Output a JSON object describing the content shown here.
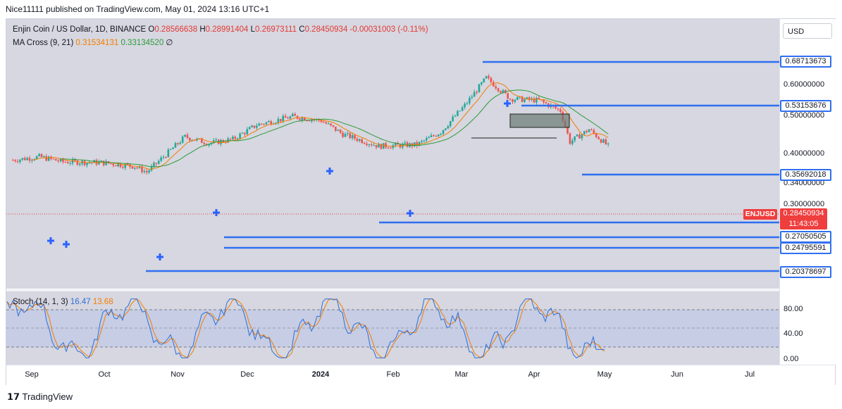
{
  "header": {
    "publisher_line": "Nice11111 published on TradingView.com, May 01, 2024 13:16 UTC+1"
  },
  "toolbar": {
    "currency_button": "USD"
  },
  "legend": {
    "symbol": "Enjin Coin / US Dollar, 1D, BINANCE",
    "open_label": "O",
    "open": "0.28566638",
    "high_label": "H",
    "high": "0.28991404",
    "low_label": "L",
    "low": "0.26973111",
    "close_label": "C",
    "close": "0.28450934",
    "change": "-0.00031003 (-0.11%)",
    "ma_name": "MA Cross (9, 21)",
    "ma_fast": "0.31534131",
    "ma_slow": "0.33134520",
    "ma_suffix": "∅",
    "stoch_name": "Stoch (14, 1, 3)",
    "stoch_k": "16.47",
    "stoch_d": "13.68"
  },
  "current_price": {
    "symbol": "ENJUSD",
    "price": "0.28450934",
    "countdown": "11:43:05"
  },
  "footer": {
    "brand": "TradingView",
    "logo": "tradingview-logo-icon"
  },
  "colors": {
    "level": "#2f6ff0",
    "ma_fast": "#f57c00",
    "ma_slow": "#2e9a3c",
    "up": "#26a69a",
    "down": "#ef5350",
    "stoch_k": "#2f6fd8",
    "stoch_d": "#f57c00",
    "cross_marker": "#2962ff",
    "current": "#ef3e3e"
  },
  "chart_data": {
    "type": "candlestick",
    "title": "Enjin Coin / US Dollar, 1D, BINANCE",
    "y_scale": "log",
    "y_tick_labels": [
      "0.60000000",
      "0.50000000",
      "0.40000000",
      "0.34000000",
      "0.30000000"
    ],
    "x_tick_labels": [
      "Sep",
      "Oct",
      "Nov",
      "Dec",
      "2024",
      "Feb",
      "Mar",
      "Apr",
      "May",
      "Jun",
      "Jul"
    ],
    "approx_close_path": [
      {
        "date": "2023-08-25",
        "close": 0.24
      },
      {
        "date": "2023-09-05",
        "close": 0.25
      },
      {
        "date": "2023-09-15",
        "close": 0.235
      },
      {
        "date": "2023-10-01",
        "close": 0.233
      },
      {
        "date": "2023-10-15",
        "close": 0.222
      },
      {
        "date": "2023-10-20",
        "close": 0.207
      },
      {
        "date": "2023-10-27",
        "close": 0.25
      },
      {
        "date": "2023-11-05",
        "close": 0.32
      },
      {
        "date": "2023-11-15",
        "close": 0.295
      },
      {
        "date": "2023-11-25",
        "close": 0.31
      },
      {
        "date": "2023-12-05",
        "close": 0.37
      },
      {
        "date": "2023-12-20",
        "close": 0.41
      },
      {
        "date": "2024-01-01",
        "close": 0.39
      },
      {
        "date": "2024-01-10",
        "close": 0.33
      },
      {
        "date": "2024-01-25",
        "close": 0.285
      },
      {
        "date": "2024-02-10",
        "close": 0.29
      },
      {
        "date": "2024-02-20",
        "close": 0.34
      },
      {
        "date": "2024-03-01",
        "close": 0.47
      },
      {
        "date": "2024-03-10",
        "close": 0.66
      },
      {
        "date": "2024-03-20",
        "close": 0.51
      },
      {
        "date": "2024-04-01",
        "close": 0.5
      },
      {
        "date": "2024-04-10",
        "close": 0.44
      },
      {
        "date": "2024-04-14",
        "close": 0.3
      },
      {
        "date": "2024-04-22",
        "close": 0.35
      },
      {
        "date": "2024-04-30",
        "close": 0.2845
      }
    ],
    "levels": [
      {
        "label": "0.68713673",
        "value": 0.68713673
      },
      {
        "label": "0.53153676",
        "value": 0.53153676
      },
      {
        "label": "0.35692018",
        "value": 0.35692018
      },
      {
        "label": "0.27050505",
        "value": 0.27050505
      },
      {
        "label": "0.24795591",
        "value": 0.24795591
      },
      {
        "label": "0.20378697",
        "value": 0.20378697
      }
    ],
    "stoch": {
      "y_tick_labels": [
        "80.00",
        "40.00",
        "0.00"
      ],
      "bands": [
        80,
        20
      ],
      "k_last": 16.47,
      "d_last": 13.68
    }
  }
}
